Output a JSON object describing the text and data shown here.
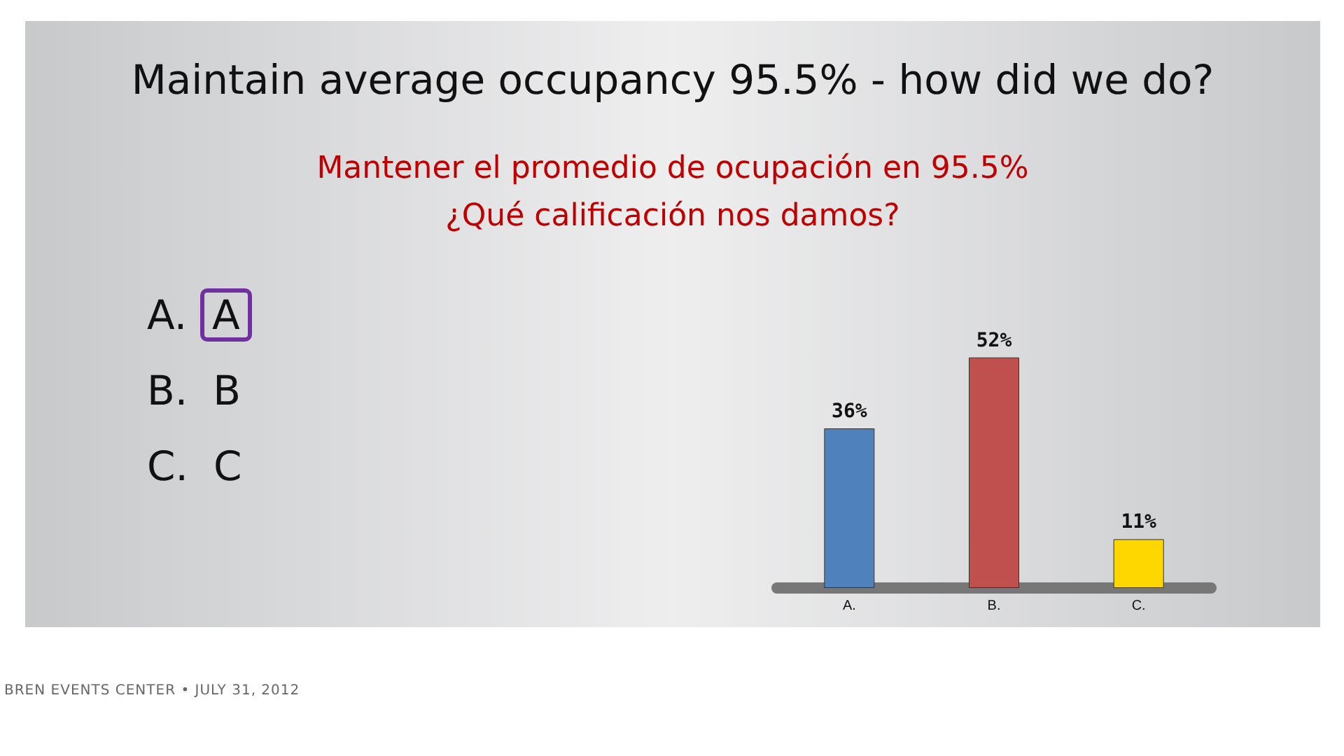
{
  "chart_data": {
    "type": "bar",
    "title": "Maintain average occupancy 95.5% - how did we do?",
    "subtitle": "Mantener el promedio de ocupación en 95.5%\n¿Qué calificación nos damos?",
    "categories": [
      "A.",
      "B.",
      "C."
    ],
    "values": [
      36,
      52,
      11
    ],
    "colors": [
      "#4f81bd",
      "#c0504d",
      "#ffd700"
    ],
    "value_labels": [
      "36%",
      "52%",
      "11%"
    ],
    "annotations": [
      "A. A",
      "B. B",
      "C. C",
      "BREN EVENTS CENTER • JULY 31, 2012"
    ]
  }
}
